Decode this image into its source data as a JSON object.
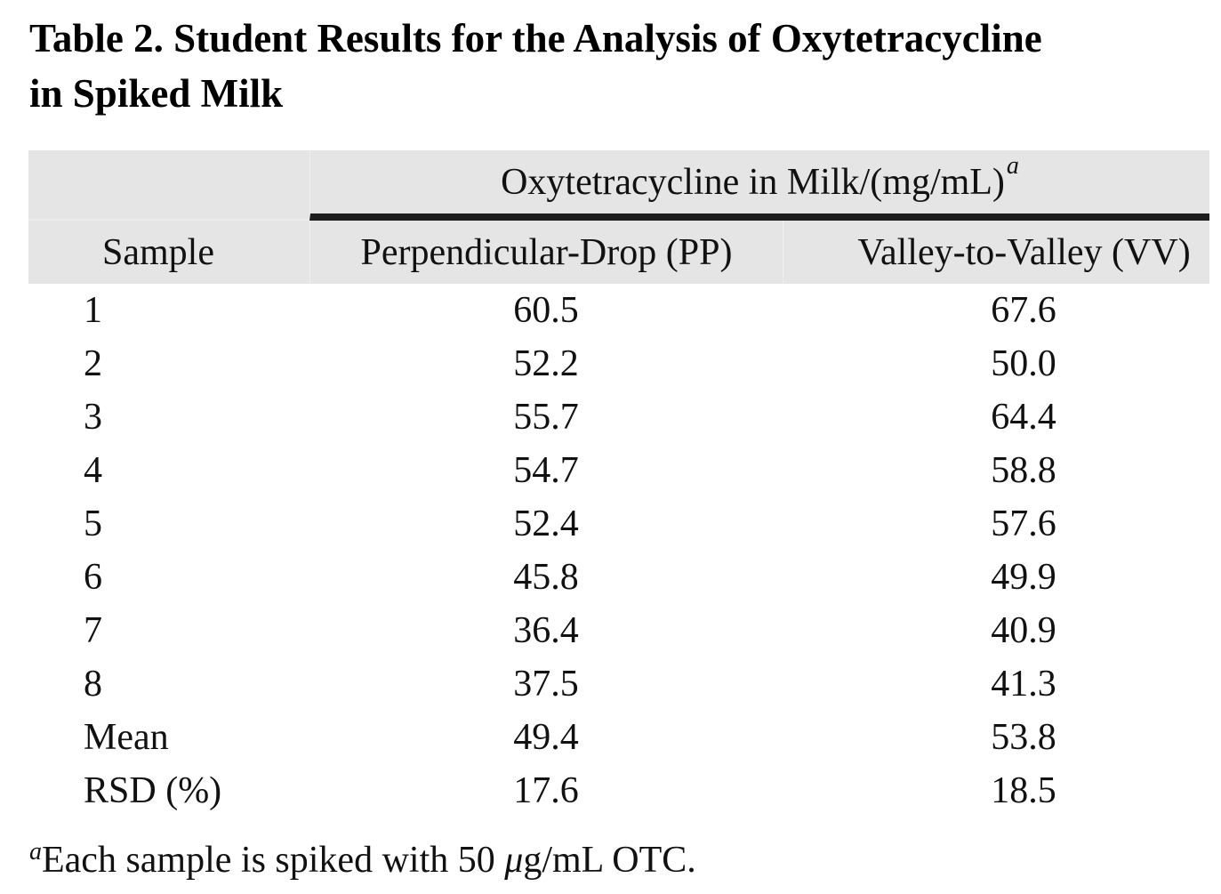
{
  "title": {
    "line1": "Table 2. Student Results for the Analysis of Oxytetracycline",
    "line2": "in Spiked Milk"
  },
  "table": {
    "span_header": {
      "text": "Oxytetracycline in Milk/(mg/mL)",
      "superscript": "a"
    },
    "columns": {
      "sample": "Sample",
      "pp": "Perpendicular-Drop (PP)",
      "vv": "Valley-to-Valley (VV)"
    },
    "rows": [
      {
        "label": "1",
        "pp": "60.5",
        "vv": "67.6"
      },
      {
        "label": "2",
        "pp": "52.2",
        "vv": "50.0"
      },
      {
        "label": "3",
        "pp": "55.7",
        "vv": "64.4"
      },
      {
        "label": "4",
        "pp": "54.7",
        "vv": "58.8"
      },
      {
        "label": "5",
        "pp": "52.4",
        "vv": "57.6"
      },
      {
        "label": "6",
        "pp": "45.8",
        "vv": "49.9"
      },
      {
        "label": "7",
        "pp": "36.4",
        "vv": "40.9"
      },
      {
        "label": "8",
        "pp": "37.5",
        "vv": "41.3"
      },
      {
        "label": "Mean",
        "pp": "49.4",
        "vv": "53.8"
      },
      {
        "label": "RSD (%)",
        "pp": "17.6",
        "vv": "18.5"
      }
    ]
  },
  "footnote": {
    "marker": "a",
    "text_before_mu": "Each sample is spiked with 50 ",
    "mu": "μ",
    "text_after_mu": "g/mL OTC."
  },
  "colors": {
    "header_bg": "#e5e5e5",
    "rule": "#1c1c1c",
    "text": "#111111"
  }
}
